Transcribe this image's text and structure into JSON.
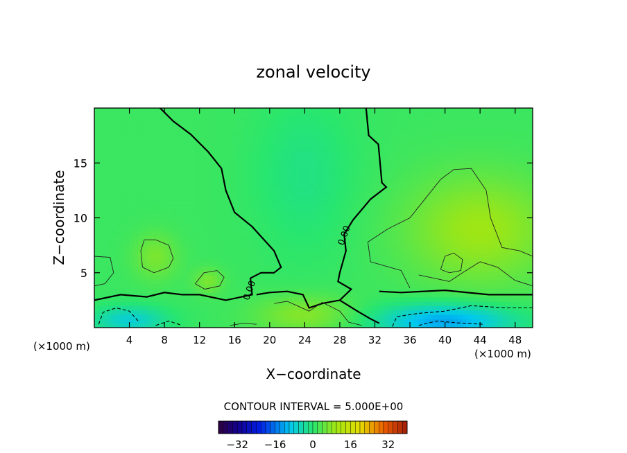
{
  "chart_data": {
    "type": "heatmap",
    "title": "zonal velocity",
    "xlabel": "X−coordinate",
    "ylabel": "Z−coordinate",
    "x_unit_label": "(×1000 m)",
    "x_unit_label_left": "(×1000 m)",
    "xlim": [
      0,
      50
    ],
    "ylim": [
      0,
      20
    ],
    "x_ticks": [
      4,
      8,
      12,
      16,
      20,
      24,
      28,
      32,
      36,
      40,
      44,
      48
    ],
    "x_tick_labels": [
      "4",
      "8",
      "12",
      "16",
      "20",
      "24",
      "28",
      "32",
      "36",
      "40",
      "44",
      "48"
    ],
    "y_ticks": [
      5,
      10,
      15
    ],
    "y_tick_labels": [
      "5",
      "10",
      "15"
    ],
    "contour_interval_text": "CONTOUR INTERVAL = 5.000E+00",
    "contour_label": "0.00",
    "colorbar": {
      "range": [
        -40,
        40
      ],
      "ticks": [
        -32,
        -16,
        0,
        16,
        32
      ],
      "tick_labels": [
        "−32",
        "−16",
        "0",
        "16",
        "32"
      ]
    },
    "zero_contours": [
      [
        [
          7.5,
          20
        ],
        [
          9,
          18.8
        ],
        [
          11,
          17.6
        ],
        [
          13,
          16
        ],
        [
          14.5,
          14.5
        ],
        [
          15,
          12.5
        ],
        [
          16,
          10.5
        ],
        [
          18,
          9.2
        ],
        [
          20.5,
          7
        ],
        [
          21.3,
          5.5
        ],
        [
          20.5,
          5
        ],
        [
          19,
          5
        ],
        [
          17.8,
          4.5
        ],
        [
          18,
          3
        ],
        [
          15,
          2.5
        ],
        [
          12,
          3
        ],
        [
          10,
          3
        ],
        [
          8,
          3.2
        ],
        [
          6,
          2.8
        ],
        [
          3,
          3
        ],
        [
          0,
          2.5
        ]
      ],
      [
        [
          31,
          20
        ],
        [
          31.3,
          17.5
        ],
        [
          32.4,
          16.7
        ],
        [
          32.8,
          13.2
        ],
        [
          33.3,
          12.8
        ],
        [
          31.5,
          11.7
        ],
        [
          29.5,
          9.8
        ],
        [
          28.5,
          8.5
        ],
        [
          28.7,
          7
        ],
        [
          28,
          5
        ],
        [
          27.8,
          4.2
        ],
        [
          29.3,
          3.5
        ],
        [
          28,
          2.5
        ],
        [
          26,
          2.2
        ],
        [
          24.5,
          1.8
        ],
        [
          23.8,
          3
        ],
        [
          22,
          3.3
        ],
        [
          20,
          3.2
        ],
        [
          18.5,
          3
        ]
      ],
      [
        [
          28,
          2.5
        ],
        [
          30,
          1.5
        ],
        [
          31.5,
          0.8
        ],
        [
          32.5,
          0.4
        ]
      ],
      [
        [
          32.5,
          3.3
        ],
        [
          35,
          3.2
        ],
        [
          40,
          3.4
        ],
        [
          45,
          3
        ],
        [
          50,
          3
        ]
      ]
    ],
    "positive_contours": [
      [
        [
          5.5,
          5.5
        ],
        [
          5.3,
          7
        ],
        [
          5.7,
          8
        ],
        [
          7,
          8
        ],
        [
          8.5,
          7.5
        ],
        [
          9,
          6.3
        ],
        [
          8.5,
          5.5
        ],
        [
          6.8,
          5
        ],
        [
          5.5,
          5.5
        ]
      ],
      [
        [
          11.5,
          4
        ],
        [
          12.5,
          5
        ],
        [
          14,
          5.2
        ],
        [
          14.8,
          4.6
        ],
        [
          14.3,
          3.8
        ],
        [
          12.6,
          3.5
        ],
        [
          11.5,
          4
        ]
      ],
      [
        [
          0,
          6.5
        ],
        [
          1.8,
          6.4
        ],
        [
          2.2,
          5
        ],
        [
          1.2,
          4
        ],
        [
          0,
          3.8
        ]
      ],
      [
        [
          36,
          3.6
        ],
        [
          35,
          5.2
        ],
        [
          31.5,
          6
        ],
        [
          31.2,
          7.8
        ],
        [
          33.5,
          9
        ],
        [
          36,
          10
        ],
        [
          37.5,
          11.5
        ],
        [
          39.5,
          13.5
        ],
        [
          41,
          14.4
        ],
        [
          43,
          14.5
        ],
        [
          44.7,
          12.5
        ],
        [
          45.2,
          10
        ],
        [
          46.5,
          7.3
        ],
        [
          48.5,
          7
        ],
        [
          50,
          6.5
        ]
      ],
      [
        [
          39.5,
          5.3
        ],
        [
          40,
          6.5
        ],
        [
          41,
          6.8
        ],
        [
          42,
          6.2
        ],
        [
          41.8,
          5.2
        ],
        [
          40.5,
          5
        ],
        [
          39.5,
          5.3
        ]
      ],
      [
        [
          37,
          4.8
        ],
        [
          40.5,
          4.2
        ],
        [
          42,
          5
        ],
        [
          44,
          6
        ],
        [
          46,
          5.5
        ],
        [
          48,
          4.3
        ],
        [
          50,
          3.8
        ]
      ],
      [
        [
          20.5,
          2.2
        ],
        [
          22,
          2.4
        ],
        [
          24.5,
          1.5
        ],
        [
          26,
          2.3
        ],
        [
          28,
          1.5
        ],
        [
          29,
          0.5
        ],
        [
          30.5,
          0.2
        ]
      ],
      [
        [
          15.5,
          0.2
        ],
        [
          17,
          0.4
        ],
        [
          18.5,
          0.3
        ]
      ]
    ],
    "negative_contours": [
      [
        [
          34,
          0.1
        ],
        [
          34.5,
          1
        ],
        [
          37,
          1.3
        ],
        [
          40,
          1.5
        ],
        [
          43,
          2
        ],
        [
          47,
          1.8
        ],
        [
          50,
          1.8
        ]
      ],
      [
        [
          37,
          0.2
        ],
        [
          39,
          0.6
        ],
        [
          42,
          0.4
        ],
        [
          44.5,
          0.3
        ]
      ],
      [
        [
          0.5,
          0.3
        ],
        [
          1,
          1.4
        ],
        [
          2.5,
          1.8
        ],
        [
          4,
          1.5
        ],
        [
          5,
          0.6
        ]
      ],
      [
        [
          7,
          0.2
        ],
        [
          8.5,
          0.6
        ],
        [
          10,
          0.2
        ]
      ]
    ],
    "contour_label_positions": [
      [
        18,
        3.3
      ],
      [
        28.8,
        8.3
      ]
    ],
    "velocity_features": [
      {
        "x": 4,
        "z": 0.7,
        "u": -9,
        "sigma_x": 3,
        "sigma_z": 0.9
      },
      {
        "x": 40,
        "z": 0.6,
        "u": -14,
        "sigma_x": 5.5,
        "sigma_z": 1.1
      },
      {
        "x": 44,
        "z": 9,
        "u": 8,
        "sigma_x": 6,
        "sigma_z": 3.5
      },
      {
        "x": 7,
        "z": 6.5,
        "u": 5,
        "sigma_x": 1.8,
        "sigma_z": 1.5
      },
      {
        "x": 13,
        "z": 4.3,
        "u": 5,
        "sigma_x": 1.2,
        "sigma_z": 0.8
      },
      {
        "x": 24,
        "z": 1.2,
        "u": 6,
        "sigma_x": 4,
        "sigma_z": 1.2
      },
      {
        "x": 24,
        "z": 14,
        "u": -3,
        "sigma_x": 4,
        "sigma_z": 5
      }
    ]
  }
}
